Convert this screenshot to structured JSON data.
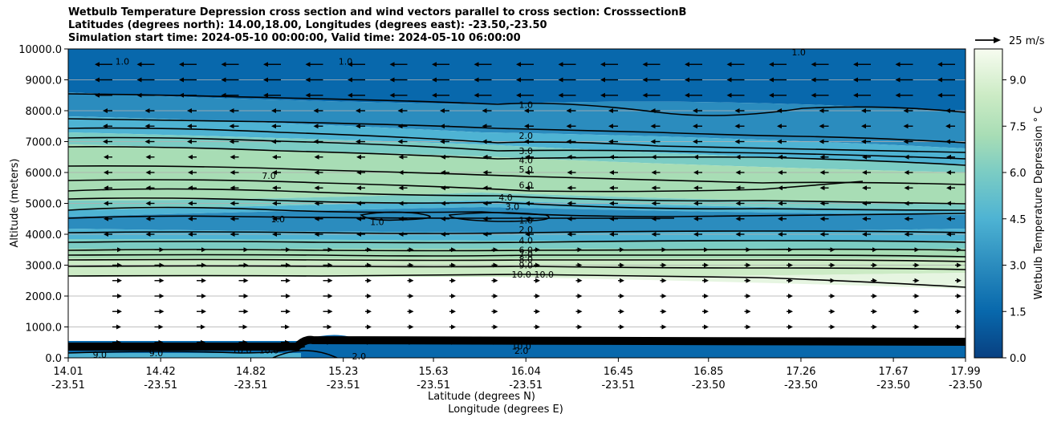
{
  "chart_data": {
    "type": "contour",
    "title_lines": [
      "Wetbulb Temperature Depression cross section and wind vectors parallel to cross section: CrosssectionB",
      "Latitudes (degrees north): 14.00,18.00, Longitudes (degrees east): -23.50,-23.50",
      "Simulation start time: 2024-05-10 00:00:00, Valid time: 2024-05-10 06:00:00"
    ],
    "ylabel": "Altitude (meters)",
    "xlabel_lat": "Latitude (degrees N)",
    "xlabel_lon": "Longitude (degrees E)",
    "ylim": [
      0,
      10000
    ],
    "y_ticks": [
      "0.0",
      "1000.0",
      "2000.0",
      "3000.0",
      "4000.0",
      "5000.0",
      "6000.0",
      "7000.0",
      "8000.0",
      "9000.0",
      "10000.0"
    ],
    "x_ticks": [
      {
        "lat": "14.01",
        "lon": "-23.51"
      },
      {
        "lat": "14.42",
        "lon": "-23.51"
      },
      {
        "lat": "14.82",
        "lon": "-23.51"
      },
      {
        "lat": "15.23",
        "lon": "-23.51"
      },
      {
        "lat": "15.63",
        "lon": "-23.51"
      },
      {
        "lat": "16.04",
        "lon": "-23.51"
      },
      {
        "lat": "16.45",
        "lon": "-23.51"
      },
      {
        "lat": "16.85",
        "lon": "-23.50"
      },
      {
        "lat": "17.26",
        "lon": "-23.50"
      },
      {
        "lat": "17.67",
        "lon": "-23.50"
      },
      {
        "lat": "17.99",
        "lon": "-23.50"
      }
    ],
    "colorbar": {
      "label": "Wetbulb Temperature Depression ° C",
      "range": [
        0,
        10
      ],
      "ticks": [
        "0.0",
        "1.5",
        "3.0",
        "4.5",
        "6.0",
        "7.5",
        "9.0"
      ]
    },
    "quiver_key": "25 m/s",
    "contour_labels": [
      {
        "text": "1.0",
        "lat": 16.04,
        "alt": 8200
      },
      {
        "text": "2.0",
        "lat": 16.04,
        "alt": 7200
      },
      {
        "text": "3.0",
        "lat": 16.04,
        "alt": 6700
      },
      {
        "text": "4.0",
        "lat": 16.04,
        "alt": 6400
      },
      {
        "text": "5.0",
        "lat": 16.04,
        "alt": 6100
      },
      {
        "text": "6.0",
        "lat": 16.04,
        "alt": 5600
      },
      {
        "text": "7.0",
        "lat": 14.9,
        "alt": 5900
      },
      {
        "text": "4.0",
        "lat": 15.95,
        "alt": 5200
      },
      {
        "text": "3.0",
        "lat": 15.98,
        "alt": 4900
      },
      {
        "text": "1.0",
        "lat": 16.04,
        "alt": 4450
      },
      {
        "text": "1.0",
        "lat": 15.38,
        "alt": 4400
      },
      {
        "text": "1.0",
        "lat": 14.94,
        "alt": 4500
      },
      {
        "text": "2.0",
        "lat": 16.04,
        "alt": 4150
      },
      {
        "text": "4.0",
        "lat": 16.04,
        "alt": 3800
      },
      {
        "text": "6.0",
        "lat": 16.04,
        "alt": 3500
      },
      {
        "text": "7.0",
        "lat": 16.04,
        "alt": 3350
      },
      {
        "text": "8.0",
        "lat": 16.04,
        "alt": 3200
      },
      {
        "text": "9.0",
        "lat": 16.04,
        "alt": 3000
      },
      {
        "text": "10.0",
        "lat": 16.02,
        "alt": 2700
      },
      {
        "text": "10.0",
        "lat": 16.12,
        "alt": 2700
      },
      {
        "text": "1.0",
        "lat": 15.24,
        "alt": 9600
      },
      {
        "text": "1.0",
        "lat": 14.25,
        "alt": 9600
      },
      {
        "text": "1.0",
        "lat": 17.25,
        "alt": 9900
      },
      {
        "text": "10.0",
        "lat": 14.78,
        "alt": 250
      },
      {
        "text": "10.0",
        "lat": 14.9,
        "alt": 250
      },
      {
        "text": "9.0",
        "lat": 14.4,
        "alt": 150
      },
      {
        "text": "9.0",
        "lat": 14.15,
        "alt": 100
      },
      {
        "text": "10.0",
        "lat": 16.02,
        "alt": 380
      },
      {
        "text": "2.0",
        "lat": 16.02,
        "alt": 230
      },
      {
        "text": "2.0",
        "lat": 15.3,
        "alt": 50
      }
    ]
  }
}
